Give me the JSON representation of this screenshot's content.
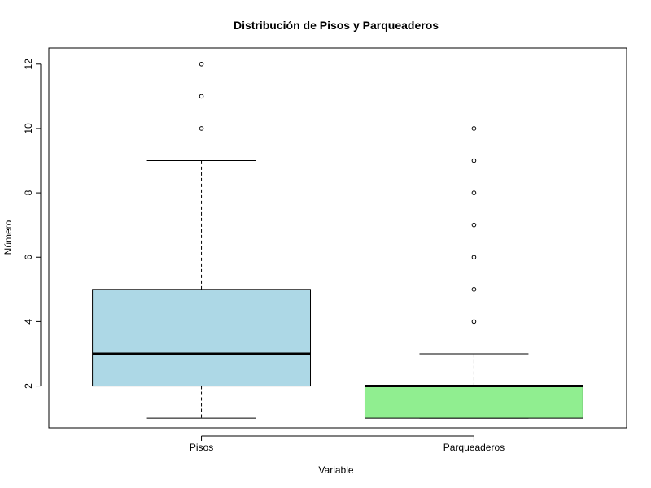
{
  "chart_data": {
    "type": "box",
    "title": "Distribución de Pisos y Parqueaderos",
    "xlabel": "Variable",
    "ylabel": "Número",
    "ylim": [
      0.7,
      12.5
    ],
    "yticks": [
      "2",
      "4",
      "6",
      "8",
      "10",
      "12"
    ],
    "categories": [
      "Pisos",
      "Parqueaderos"
    ],
    "series": [
      {
        "category": "Pisos",
        "color": "#ADD8E6",
        "whisker_low": 1,
        "q1": 2,
        "median": 3,
        "q3": 5,
        "whisker_high": 9,
        "outliers": [
          10,
          11,
          12
        ]
      },
      {
        "category": "Parqueaderos",
        "color": "#90EE90",
        "whisker_low": 1,
        "q1": 1,
        "median": 2,
        "q3": 2,
        "whisker_high": 3,
        "outliers": [
          4,
          5,
          6,
          7,
          8,
          9,
          10
        ]
      }
    ],
    "grid": false,
    "legend": "none"
  }
}
